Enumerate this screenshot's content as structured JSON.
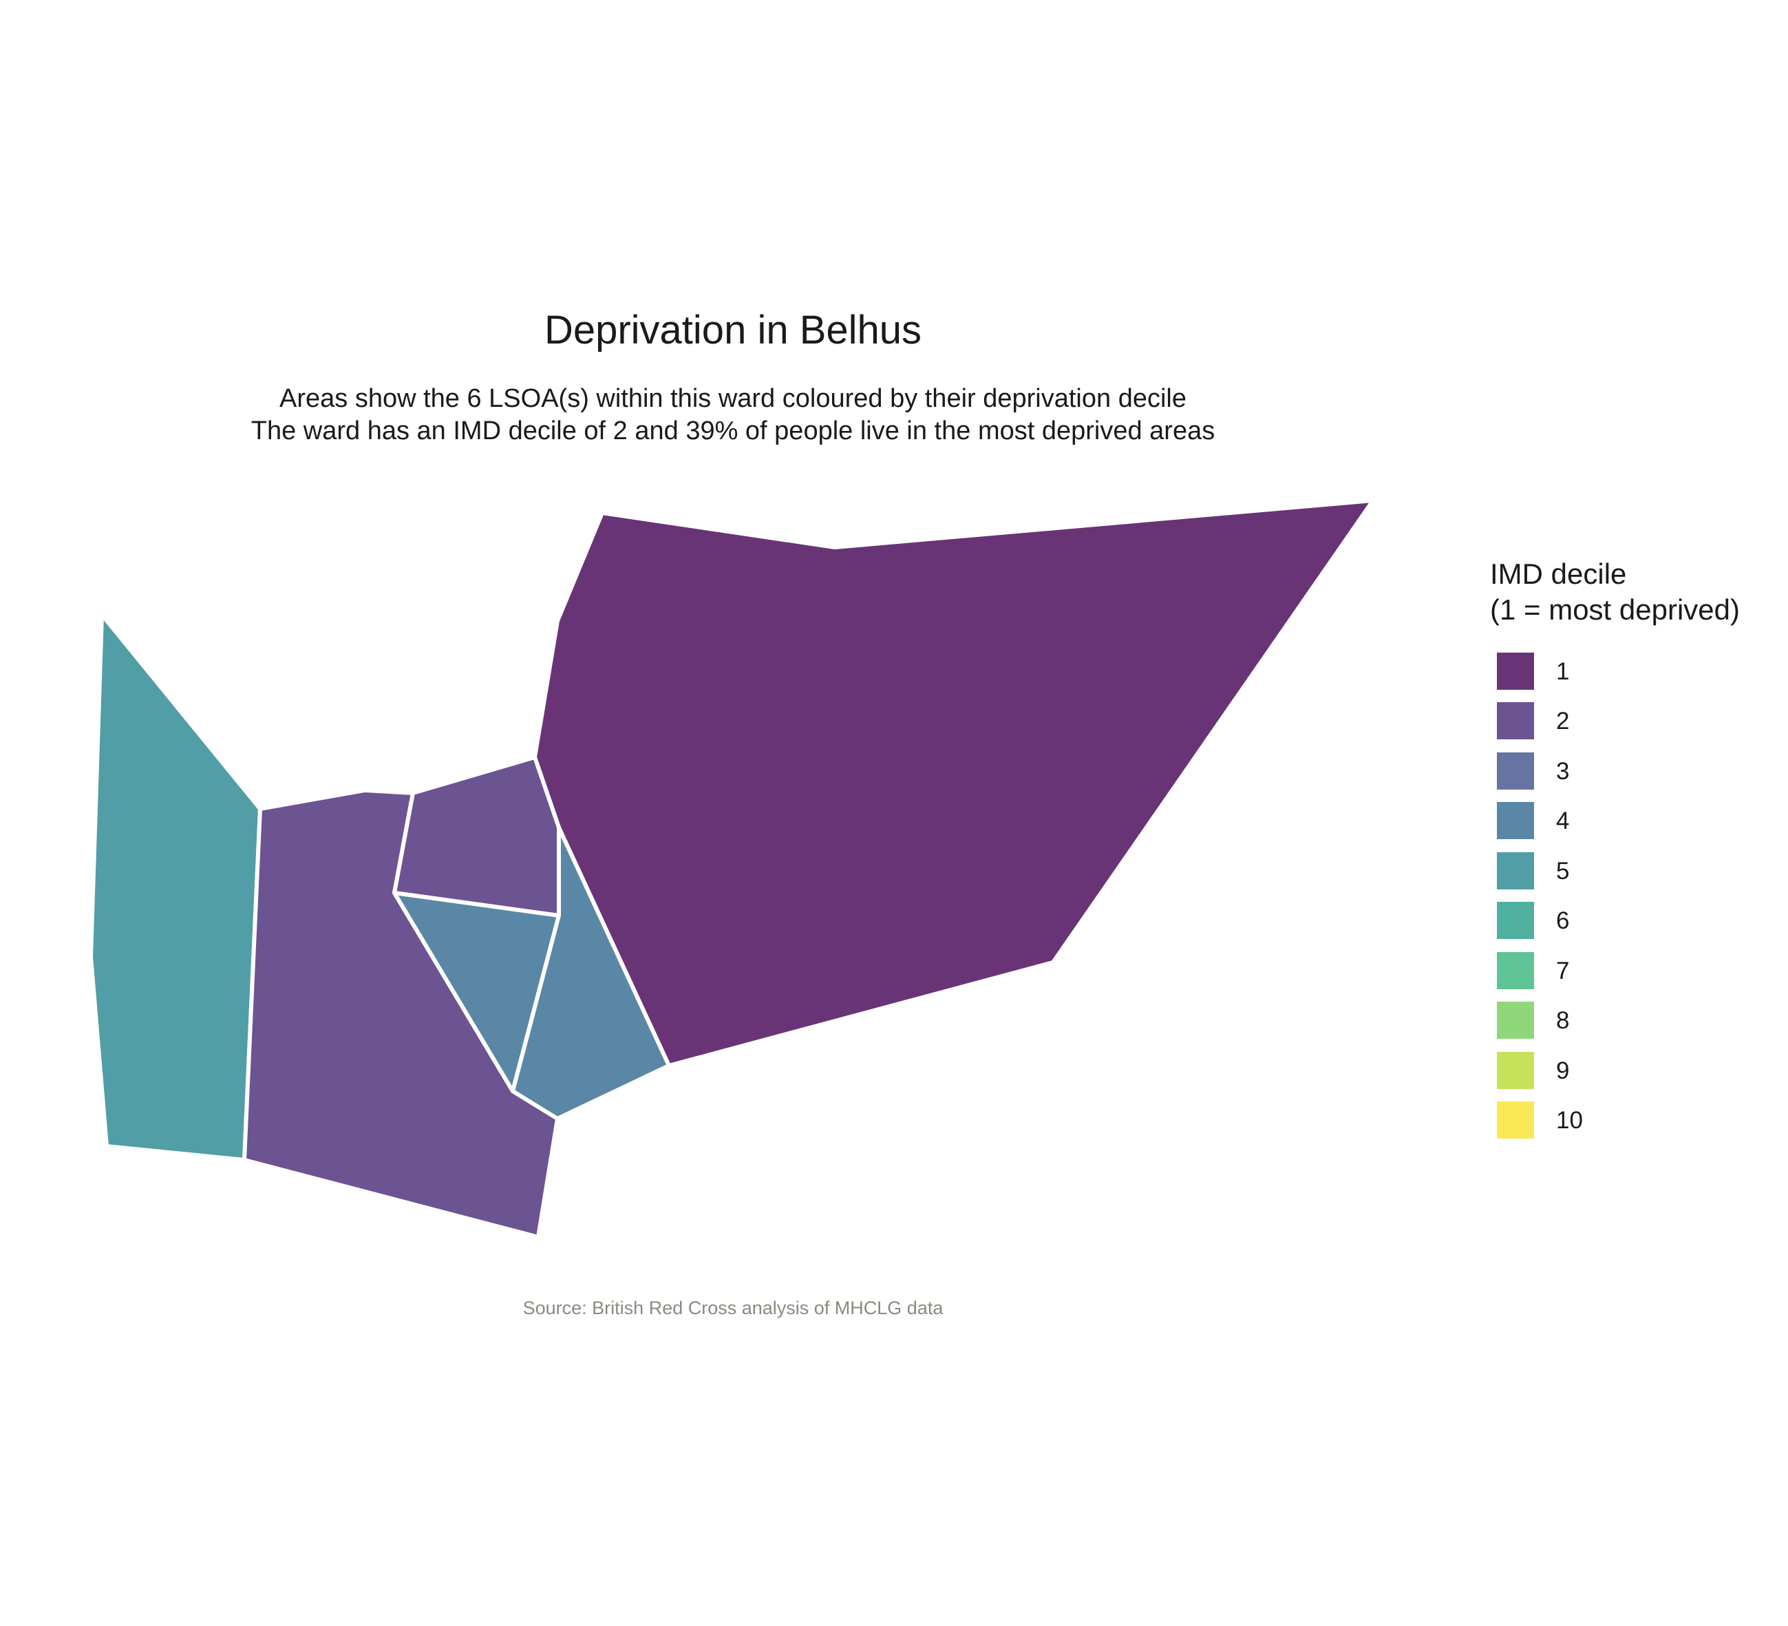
{
  "title": "Deprivation in Belhus",
  "subtitle_line1": "Areas show the 6 LSOA(s) within this ward coloured by their deprivation decile",
  "subtitle_line2": "The ward has an IMD decile of 2 and 39% of people live in the most deprived areas",
  "caption": "Source: British Red Cross analysis of MHCLG data",
  "legend": {
    "title_line1": "IMD decile",
    "title_line2": "(1 = most deprived)",
    "items": [
      {
        "label": "1",
        "color": "#693476"
      },
      {
        "label": "2",
        "color": "#6c5392"
      },
      {
        "label": "3",
        "color": "#6674a2"
      },
      {
        "label": "4",
        "color": "#5a87a5"
      },
      {
        "label": "5",
        "color": "#519ea7"
      },
      {
        "label": "6",
        "color": "#50b0a0"
      },
      {
        "label": "7",
        "color": "#5fc596"
      },
      {
        "label": "8",
        "color": "#8fd77a"
      },
      {
        "label": "9",
        "color": "#c6e25b"
      },
      {
        "label": "10",
        "color": "#fae855"
      }
    ]
  },
  "areas": [
    {
      "name": "lsoa-north-east",
      "decile": 1
    },
    {
      "name": "lsoa-west",
      "decile": 5
    },
    {
      "name": "lsoa-south-west",
      "decile": 2
    },
    {
      "name": "lsoa-central-north",
      "decile": 2
    },
    {
      "name": "lsoa-central-south",
      "decile": 4
    },
    {
      "name": "lsoa-south-east",
      "decile": 4
    }
  ]
}
